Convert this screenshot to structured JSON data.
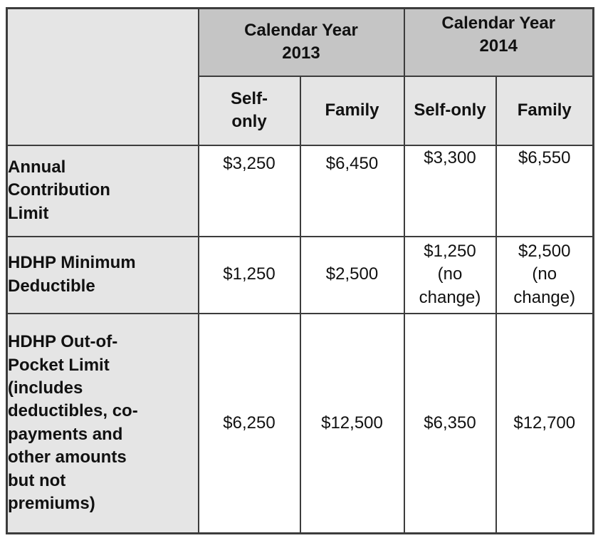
{
  "table": {
    "title_semantic": "HSA and HDHP limits comparison table",
    "colors": {
      "group_header_bg": "#c5c5c5",
      "subheader_bg": "#e5e5e5",
      "row_label_bg": "#e5e5e5",
      "data_cell_bg": "#ffffff",
      "border": "#3c3c3c",
      "text": "#111111",
      "page_bg": "#ffffff"
    },
    "corner": "",
    "groups": [
      {
        "label": "Calendar Year\n2013",
        "cols": [
          "Self-\nonly",
          "Family"
        ]
      },
      {
        "label": "Calendar Year\n2014",
        "cols": [
          "Self-only",
          "Family"
        ]
      }
    ],
    "rows": [
      {
        "label": "Annual\nContribution\nLimit",
        "values": [
          "$3,250",
          "$6,450",
          "$3,300",
          "$6,550"
        ]
      },
      {
        "label": "HDHP Minimum\nDeductible",
        "values": [
          "$1,250",
          "$2,500",
          "$1,250\n(no\nchange)",
          "$2,500\n(no\nchange)"
        ]
      },
      {
        "label": "HDHP Out-of-\nPocket Limit\n(includes\ndeductibles, co-\npayments and\nother amounts\nbut not\npremiums)",
        "values": [
          "$6,250",
          "$12,500",
          "$6,350",
          "$12,700"
        ]
      }
    ]
  }
}
